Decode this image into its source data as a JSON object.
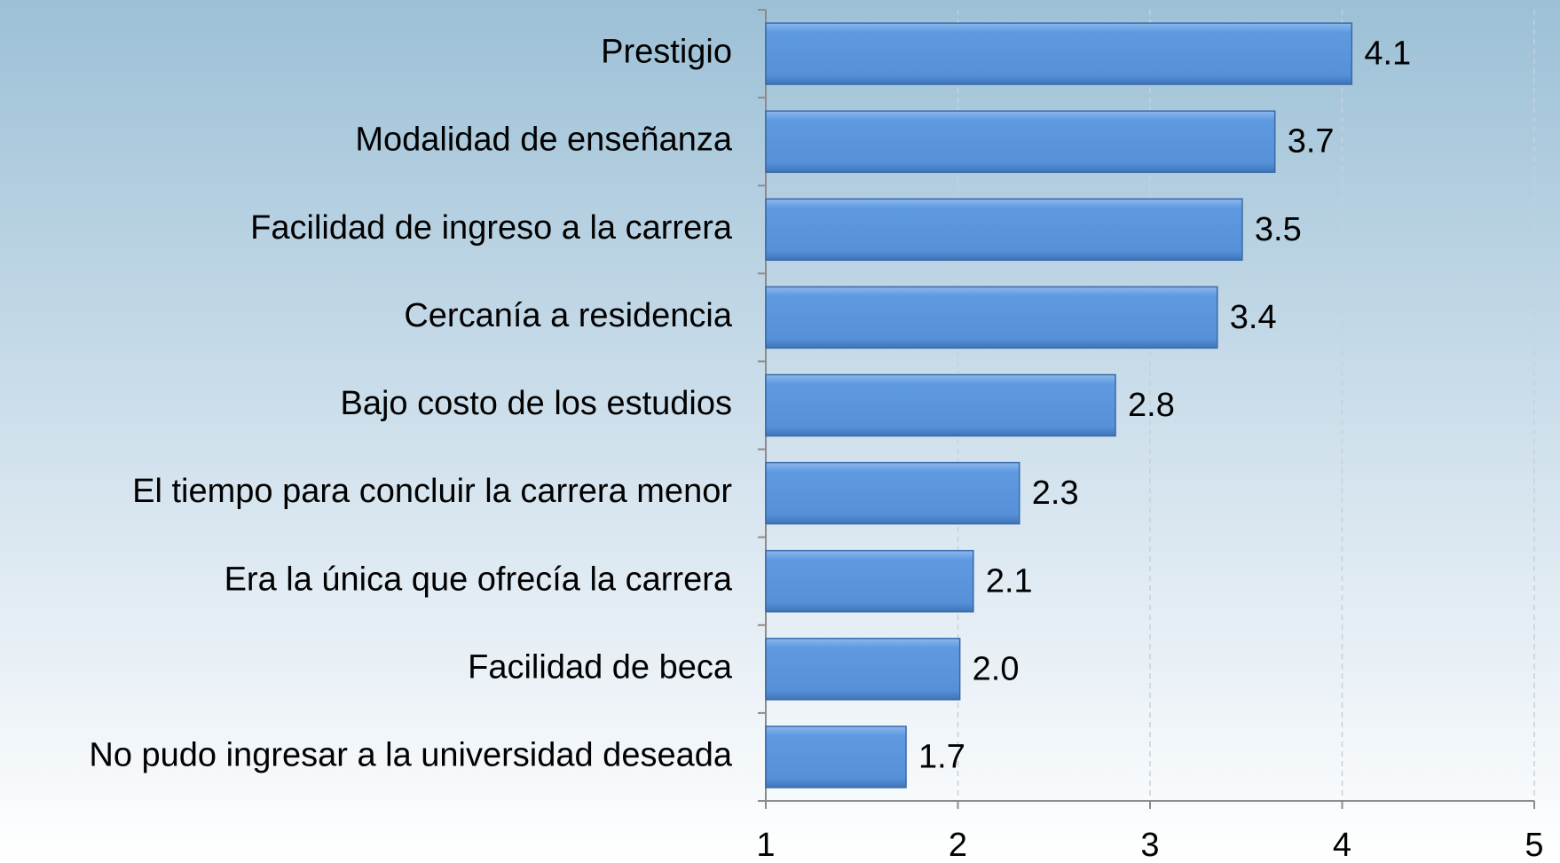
{
  "chart_data": {
    "type": "bar",
    "orientation": "horizontal",
    "categories": [
      "Prestigio",
      "Modalidad de enseñanza",
      "Facilidad de ingreso a la carrera",
      "Cercanía a residencia",
      "Bajo costo de los estudios",
      "El tiempo para concluir la carrera  menor",
      "Era la única que ofrecía la carrera",
      "Facilidad de beca",
      "No pudo ingresar a la universidad deseada"
    ],
    "values": [
      4.05,
      3.65,
      3.48,
      3.35,
      2.82,
      2.32,
      2.08,
      2.01,
      1.73
    ],
    "value_labels": [
      "4.1",
      "3.7",
      "3.5",
      "3.4",
      "2.8",
      "2.3",
      "2.1",
      "2.0",
      "1.7"
    ],
    "color": "#5b97dd",
    "xlim": [
      1,
      5
    ],
    "xticks": [
      1,
      2,
      3,
      4,
      5
    ],
    "grid": true
  }
}
